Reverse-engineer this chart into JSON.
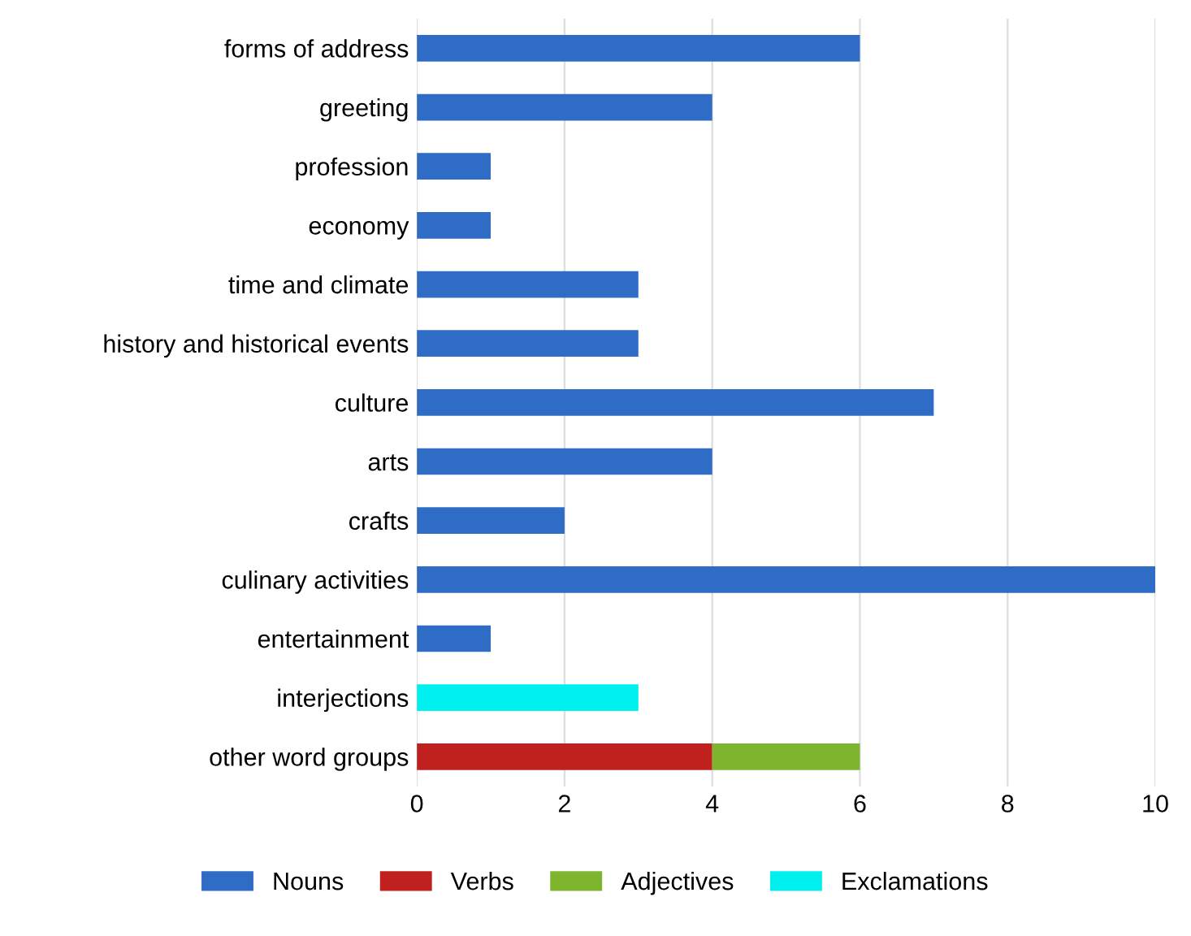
{
  "chart_data": {
    "type": "bar",
    "orientation": "horizontal",
    "stacked": true,
    "categories": [
      "forms of address",
      "greeting",
      "profession",
      "economy",
      "time and climate",
      "history and historical events",
      "culture",
      "arts",
      "crafts",
      "culinary activities",
      "entertainment",
      "interjections",
      "other word groups"
    ],
    "series": [
      {
        "name": "Nouns",
        "color": "#2e6cc6",
        "values": [
          6,
          4,
          1,
          1,
          3,
          3,
          7,
          4,
          2,
          10,
          1,
          null,
          null
        ]
      },
      {
        "name": "Verbs",
        "color": "#c0201e",
        "values": [
          null,
          null,
          null,
          null,
          null,
          null,
          null,
          null,
          null,
          null,
          null,
          null,
          4
        ]
      },
      {
        "name": "Adjectives",
        "color": "#7db52e",
        "values": [
          null,
          null,
          null,
          null,
          null,
          null,
          null,
          null,
          null,
          null,
          null,
          null,
          2
        ]
      },
      {
        "name": "Exclamations",
        "color": "#00f0f0",
        "values": [
          null,
          null,
          null,
          null,
          null,
          null,
          null,
          null,
          null,
          null,
          null,
          3,
          null
        ]
      }
    ],
    "xlim": [
      0,
      10
    ],
    "xticks": [
      0,
      2,
      4,
      6,
      8,
      10
    ],
    "grid": "x",
    "legend": "bottom"
  }
}
